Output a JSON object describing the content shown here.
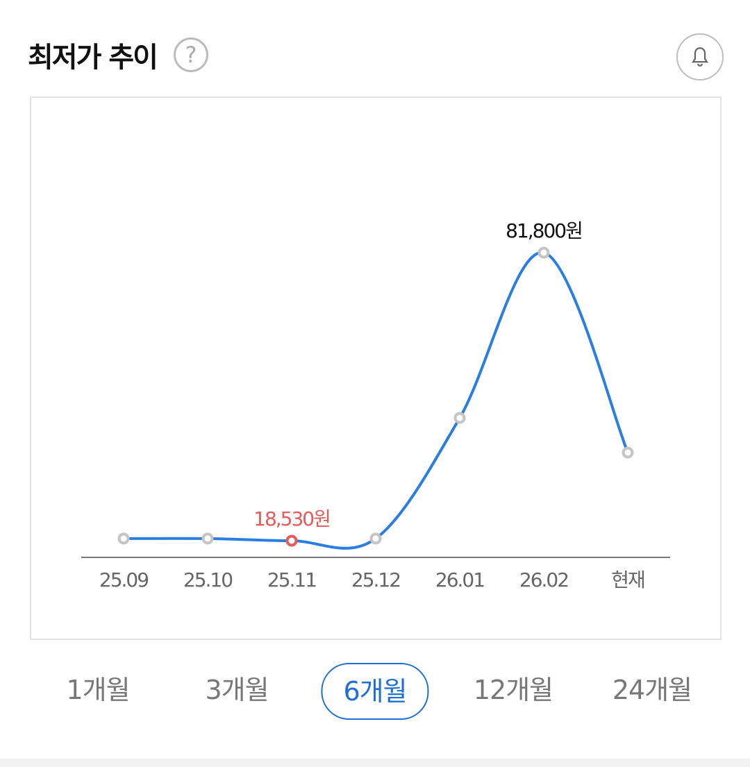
{
  "header": {
    "title": "최저가 추이",
    "help_icon": "question-circle-icon",
    "alert_icon": "bell-icon"
  },
  "chart_data": {
    "type": "line",
    "categories": [
      "25.09",
      "25.10",
      "25.11",
      "25.12",
      "26.01",
      "26.02",
      "현재"
    ],
    "values": [
      19000,
      19000,
      18530,
      19000,
      45500,
      81800,
      37900
    ],
    "annotations": [
      {
        "category": "25.11",
        "label": "18,530원",
        "kind": "min"
      },
      {
        "category": "26.02",
        "label": "81,800원",
        "kind": "max"
      }
    ],
    "line_color": "#2a7de1",
    "min_color": "#e55a5a",
    "point_color": "#c4c4c4",
    "grid": false
  },
  "periods": {
    "items": [
      "1개월",
      "3개월",
      "6개월",
      "12개월",
      "24개월"
    ],
    "selected": "6개월"
  }
}
